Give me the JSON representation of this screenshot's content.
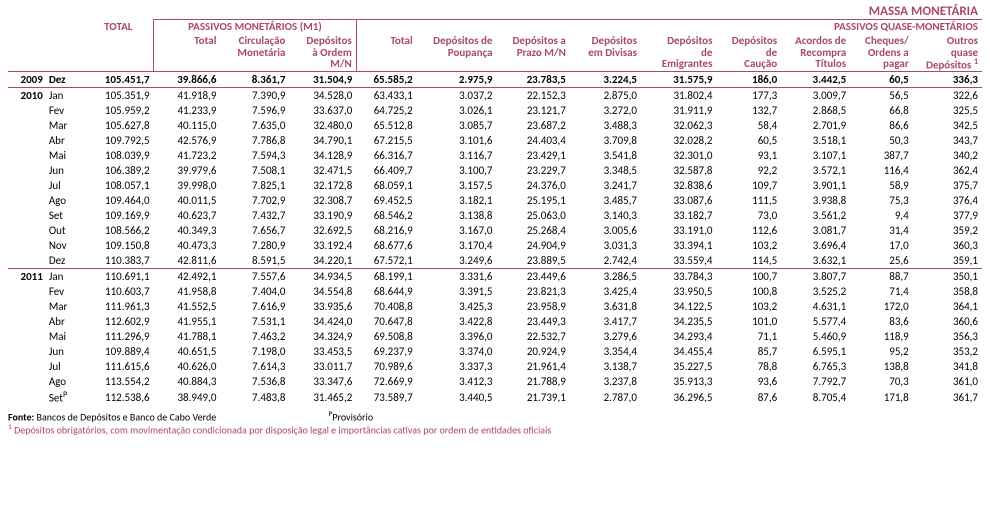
{
  "title_main": "MASSA MONETÁRIA",
  "header": {
    "total": "TOTAL",
    "m1_group": "PASSIVOS MONETÁRIOS (M1)",
    "qm_group": "PASSIVOS QUASE-MONETÁRIOS",
    "m1": {
      "total": "Total",
      "circ": "Circulação Monetária",
      "dep": "Depósitos à Ordem M/N"
    },
    "qm": {
      "total": "Total",
      "poup": "Depósitos de Poupança",
      "prazo": "Depósitos a Prazo M/N",
      "div": "Depósitos em Divisas",
      "emi": "Depósitos de Emigrantes",
      "cau": "Depósitos de Caução",
      "acrt": "Acordos de Recompra Títulos",
      "cheq": "Cheques/ Ordens a pagar",
      "outr": "Outros quase Depósitos",
      "outr_sup": "1"
    }
  },
  "rows": [
    {
      "year": "2009",
      "month": "Dez",
      "hi": true,
      "total": "105.451,7",
      "m1_total": "39.866,6",
      "circ": "8.361,7",
      "dep": "31.504,9",
      "qm_total": "65.585,2",
      "poup": "2.975,9",
      "prazo": "23.783,5",
      "div": "3.224,5",
      "emi": "31.575,9",
      "cau": "186,0",
      "acrt": "3.442,5",
      "cheq": "60,5",
      "outr": "336,3"
    },
    {
      "year": "2010",
      "month": "Jan",
      "total": "105.351,9",
      "m1_total": "41.918,9",
      "circ": "7.390,9",
      "dep": "34.528,0",
      "qm_total": "63.433,1",
      "poup": "3.037,2",
      "prazo": "22.152,3",
      "div": "2.875,0",
      "emi": "31.802,4",
      "cau": "177,3",
      "acrt": "3.009,7",
      "cheq": "56,5",
      "outr": "322,6"
    },
    {
      "month": "Fev",
      "total": "105.959,2",
      "m1_total": "41.233,9",
      "circ": "7.596,9",
      "dep": "33.637,0",
      "qm_total": "64.725,2",
      "poup": "3.026,1",
      "prazo": "23.121,7",
      "div": "3.272,0",
      "emi": "31.911,9",
      "cau": "132,7",
      "acrt": "2.868,5",
      "cheq": "66,8",
      "outr": "325,5"
    },
    {
      "month": "Mar",
      "total": "105.627,8",
      "m1_total": "40.115,0",
      "circ": "7.635,0",
      "dep": "32.480,0",
      "qm_total": "65.512,8",
      "poup": "3.085,7",
      "prazo": "23.687,2",
      "div": "3.488,3",
      "emi": "32.062,3",
      "cau": "58,4",
      "acrt": "2.701,9",
      "cheq": "86,6",
      "outr": "342,5"
    },
    {
      "month": "Abr",
      "total": "109.792,5",
      "m1_total": "42.576,9",
      "circ": "7.786,8",
      "dep": "34.790,1",
      "qm_total": "67.215,5",
      "poup": "3.101,6",
      "prazo": "24.403,4",
      "div": "3.709,8",
      "emi": "32.028,2",
      "cau": "60,5",
      "acrt": "3.518,1",
      "cheq": "50,3",
      "outr": "343,7"
    },
    {
      "month": "Mai",
      "total": "108.039,9",
      "m1_total": "41.723,2",
      "circ": "7.594,3",
      "dep": "34.128,9",
      "qm_total": "66.316,7",
      "poup": "3.116,7",
      "prazo": "23.429,1",
      "div": "3.541,8",
      "emi": "32.301,0",
      "cau": "93,1",
      "acrt": "3.107,1",
      "cheq": "387,7",
      "outr": "340,2"
    },
    {
      "month": "Jun",
      "total": "106.389,2",
      "m1_total": "39.979,6",
      "circ": "7.508,1",
      "dep": "32.471,5",
      "qm_total": "66.409,7",
      "poup": "3.100,7",
      "prazo": "23.229,7",
      "div": "3.348,5",
      "emi": "32.587,8",
      "cau": "92,2",
      "acrt": "3.572,1",
      "cheq": "116,4",
      "outr": "362,4"
    },
    {
      "month": "Jul",
      "total": "108.057,1",
      "m1_total": "39.998,0",
      "circ": "7.825,1",
      "dep": "32.172,8",
      "qm_total": "68.059,1",
      "poup": "3.157,5",
      "prazo": "24.376,0",
      "div": "3.241,7",
      "emi": "32.838,6",
      "cau": "109,7",
      "acrt": "3.901,1",
      "cheq": "58,9",
      "outr": "375,7"
    },
    {
      "month": "Ago",
      "total": "109.464,0",
      "m1_total": "40.011,5",
      "circ": "7.702,9",
      "dep": "32.308,7",
      "qm_total": "69.452,5",
      "poup": "3.182,1",
      "prazo": "25.195,1",
      "div": "3.485,7",
      "emi": "33.087,6",
      "cau": "111,5",
      "acrt": "3.938,8",
      "cheq": "75,3",
      "outr": "376,4"
    },
    {
      "month": "Set",
      "total": "109.169,9",
      "m1_total": "40.623,7",
      "circ": "7.432,7",
      "dep": "33.190,9",
      "qm_total": "68.546,2",
      "poup": "3.138,8",
      "prazo": "25.063,0",
      "div": "3.140,3",
      "emi": "33.182,7",
      "cau": "73,0",
      "acrt": "3.561,2",
      "cheq": "9,4",
      "outr": "377,9"
    },
    {
      "month": "Out",
      "total": "108.566,2",
      "m1_total": "40.349,3",
      "circ": "7.656,7",
      "dep": "32.692,5",
      "qm_total": "68.216,9",
      "poup": "3.167,0",
      "prazo": "25.268,4",
      "div": "3.005,6",
      "emi": "33.191,0",
      "cau": "112,6",
      "acrt": "3.081,7",
      "cheq": "31,4",
      "outr": "359,2"
    },
    {
      "month": "Nov",
      "total": "109.150,8",
      "m1_total": "40.473,3",
      "circ": "7.280,9",
      "dep": "33.192,4",
      "qm_total": "68.677,6",
      "poup": "3.170,4",
      "prazo": "24.904,9",
      "div": "3.031,3",
      "emi": "33.394,1",
      "cau": "103,2",
      "acrt": "3.696,4",
      "cheq": "17,0",
      "outr": "360,3"
    },
    {
      "month": "Dez",
      "total": "110.383,7",
      "m1_total": "42.811,6",
      "circ": "8.591,5",
      "dep": "34.220,1",
      "qm_total": "67.572,1",
      "poup": "3.249,6",
      "prazo": "23.889,5",
      "div": "2.742,4",
      "emi": "33.559,4",
      "cau": "114,5",
      "acrt": "3.632,1",
      "cheq": "25,6",
      "outr": "359,1"
    },
    {
      "year": "2011",
      "month": "Jan",
      "total": "110.691,1",
      "m1_total": "42.492,1",
      "circ": "7.557,6",
      "dep": "34.934,5",
      "qm_total": "68.199,1",
      "poup": "3.331,6",
      "prazo": "23.449,6",
      "div": "3.286,5",
      "emi": "33.784,3",
      "cau": "100,7",
      "acrt": "3.807,7",
      "cheq": "88,7",
      "outr": "350,1"
    },
    {
      "month": "Fev",
      "total": "110.603,7",
      "m1_total": "41.958,8",
      "circ": "7.404,0",
      "dep": "34.554,8",
      "qm_total": "68.644,9",
      "poup": "3.391,5",
      "prazo": "23.821,3",
      "div": "3.425,4",
      "emi": "33.950,5",
      "cau": "100,8",
      "acrt": "3.525,2",
      "cheq": "71,4",
      "outr": "358,8"
    },
    {
      "month": "Mar",
      "total": "111.961,3",
      "m1_total": "41.552,5",
      "circ": "7.616,9",
      "dep": "33.935,6",
      "qm_total": "70.408,8",
      "poup": "3.425,3",
      "prazo": "23.958,9",
      "div": "3.631,8",
      "emi": "34.122,5",
      "cau": "103,2",
      "acrt": "4.631,1",
      "cheq": "172,0",
      "outr": "364,1"
    },
    {
      "month": "Abr",
      "total": "112.602,9",
      "m1_total": "41.955,1",
      "circ": "7.531,1",
      "dep": "34.424,0",
      "qm_total": "70.647,8",
      "poup": "3.422,8",
      "prazo": "23.449,3",
      "div": "3.417,7",
      "emi": "34.235,5",
      "cau": "101,0",
      "acrt": "5.577,4",
      "cheq": "83,6",
      "outr": "360,6"
    },
    {
      "month": "Mai",
      "total": "111.296,9",
      "m1_total": "41.788,1",
      "circ": "7.463,2",
      "dep": "34.324,9",
      "qm_total": "69.508,8",
      "poup": "3.396,0",
      "prazo": "22.532,7",
      "div": "3.279,6",
      "emi": "34.293,4",
      "cau": "71,1",
      "acrt": "5.460,9",
      "cheq": "118,9",
      "outr": "356,3"
    },
    {
      "month": "Jun",
      "total": "109.889,4",
      "m1_total": "40.651,5",
      "circ": "7.198,0",
      "dep": "33.453,5",
      "qm_total": "69.237,9",
      "poup": "3.374,0",
      "prazo": "20.924,9",
      "div": "3.354,4",
      "emi": "34.455,4",
      "cau": "85,7",
      "acrt": "6.595,1",
      "cheq": "95,2",
      "outr": "353,2"
    },
    {
      "month": "Jul",
      "total": "111.615,6",
      "m1_total": "40.626,0",
      "circ": "7.614,3",
      "dep": "33.011,7",
      "qm_total": "70.989,6",
      "poup": "3.337,3",
      "prazo": "21.961,4",
      "div": "3.138,7",
      "emi": "35.227,5",
      "cau": "78,8",
      "acrt": "6.765,3",
      "cheq": "138,8",
      "outr": "341,8"
    },
    {
      "month": "Ago",
      "total": "113.554,2",
      "m1_total": "40.884,3",
      "circ": "7.536,8",
      "dep": "33.347,6",
      "qm_total": "72.669,9",
      "poup": "3.412,3",
      "prazo": "21.788,9",
      "div": "3.237,8",
      "emi": "35.913,3",
      "cau": "93,6",
      "acrt": "7.792,7",
      "cheq": "70,3",
      "outr": "361,0"
    },
    {
      "month": "Set",
      "month_sup": "P",
      "total": "112.538,6",
      "m1_total": "38.949,0",
      "circ": "7.483,8",
      "dep": "31.465,2",
      "qm_total": "73.589,7",
      "poup": "3.440,5",
      "prazo": "21.739,1",
      "div": "2.787,0",
      "emi": "36.296,5",
      "cau": "87,6",
      "acrt": "8.705,4",
      "cheq": "171,8",
      "outr": "361,7"
    }
  ],
  "foot": {
    "source_label": "Fonte:",
    "source_text": "Bancos de Depósitos e Banco de Cabo Verde",
    "prov_sup": "P",
    "prov_text": "Provisório",
    "note_sup": "1",
    "note_text": "Depósitos obrigatórios, com movimentação condicionada por disposição legal e importâncias cativas por ordem de entidades oficiais"
  },
  "cols": [
    "total",
    "m1_total",
    "circ",
    "dep",
    "qm_total",
    "poup",
    "prazo",
    "div",
    "emi",
    "cau",
    "acrt",
    "cheq",
    "outr"
  ]
}
